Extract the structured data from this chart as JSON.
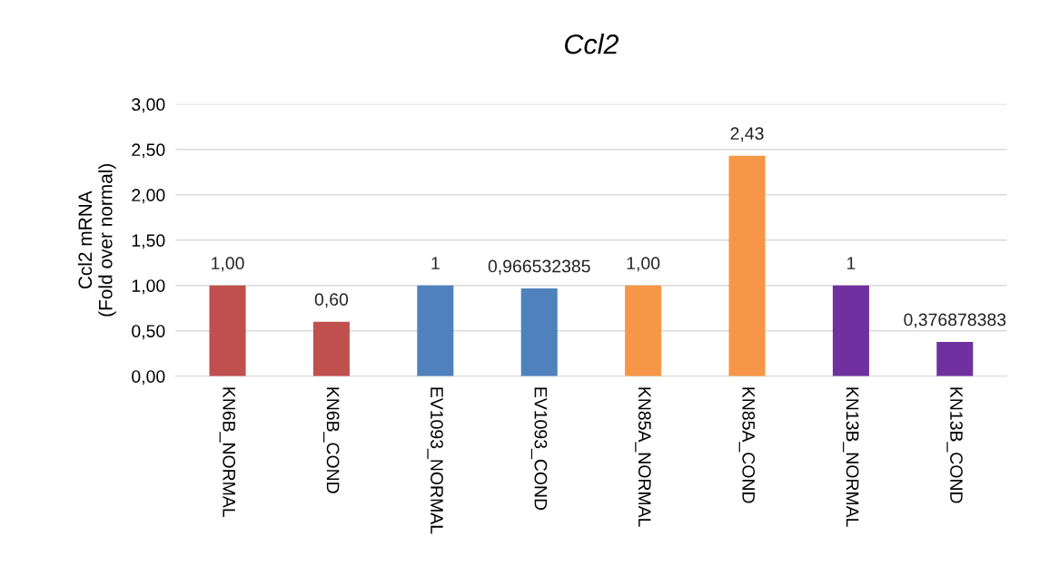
{
  "chart_data": {
    "type": "bar",
    "title": "Ccl2",
    "ylabel": "Ccl2 mRNA\n(Fold over normal)",
    "categories": [
      "KN6B_NORMAL",
      "KN6B_COND",
      "EV1093_NORMAL",
      "EV1093_COND",
      "KN85A_NORMAL",
      "KN85A_COND",
      "KN13B_NORMAL",
      "KN13B_COND"
    ],
    "values": [
      1,
      0.6,
      1,
      0.966532385,
      1.0,
      2.43,
      1,
      0.376878383
    ],
    "colors": [
      "#c0504d",
      "#c0504d",
      "#4f81bd",
      "#4f81bd",
      "#f79646",
      "#f79646",
      "#7030a0",
      "#7030a0"
    ],
    "value_labels": [
      "1,00",
      "0,60",
      "1",
      "0,966532385",
      "1,00",
      "2,43",
      "1",
      "0,376878383"
    ],
    "ylim": [
      0,
      3
    ],
    "yticks": [
      {
        "value": 0,
        "label": "0,00"
      },
      {
        "value": 0.5,
        "label": "0,50"
      },
      {
        "value": 1,
        "label": "1,00"
      },
      {
        "value": 1.5,
        "label": "1,50"
      },
      {
        "value": 2,
        "label": "2,00"
      },
      {
        "value": 2.5,
        "label": "2,50"
      },
      {
        "value": 3,
        "label": "3,00"
      }
    ],
    "grid": "y",
    "legend": false
  }
}
